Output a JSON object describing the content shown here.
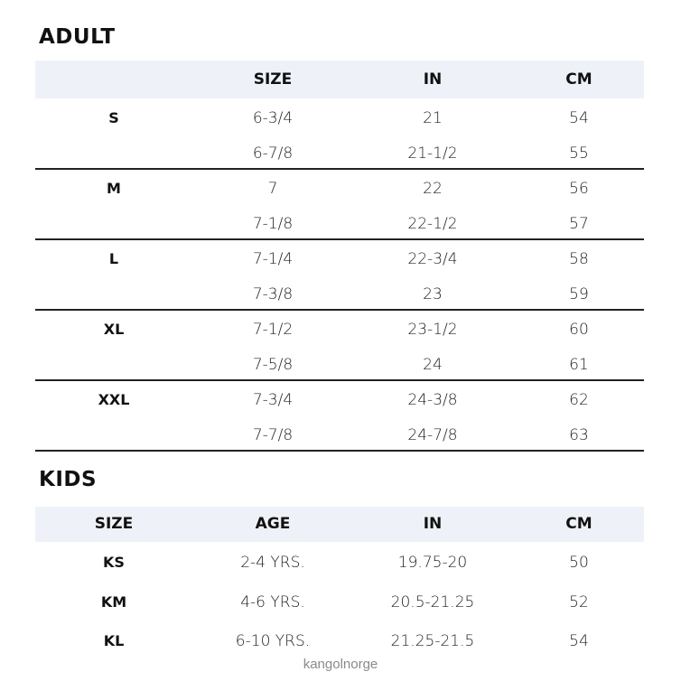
{
  "adult": {
    "title": "ADULT",
    "headers": [
      "",
      "SIZE",
      "IN",
      "CM"
    ],
    "groups": [
      {
        "label": "S",
        "rows": [
          [
            "6-3/4",
            "21",
            "54"
          ],
          [
            "6-7/8",
            "21-1/2",
            "55"
          ]
        ]
      },
      {
        "label": "M",
        "rows": [
          [
            "7",
            "22",
            "56"
          ],
          [
            "7-1/8",
            "22-1/2",
            "57"
          ]
        ]
      },
      {
        "label": "L",
        "rows": [
          [
            "7-1/4",
            "22-3/4",
            "58"
          ],
          [
            "7-3/8",
            "23",
            "59"
          ]
        ]
      },
      {
        "label": "XL",
        "rows": [
          [
            "7-1/2",
            "23-1/2",
            "60"
          ],
          [
            "7-5/8",
            "24",
            "61"
          ]
        ]
      },
      {
        "label": "XXL",
        "rows": [
          [
            "7-3/4",
            "24-3/8",
            "62"
          ],
          [
            "7-7/8",
            "24-7/8",
            "63"
          ]
        ]
      }
    ]
  },
  "kids": {
    "title": "KIDS",
    "headers": [
      "SIZE",
      "AGE",
      "IN",
      "CM"
    ],
    "rows": [
      [
        "KS",
        "2-4 YRS.",
        "19.75-20",
        "50"
      ],
      [
        "KM",
        "4-6 YRS.",
        "20.5-21.25",
        "52"
      ],
      [
        "KL",
        "6-10 YRS.",
        "21.25-21.5",
        "54"
      ]
    ]
  },
  "watermark": "kangolnorge"
}
